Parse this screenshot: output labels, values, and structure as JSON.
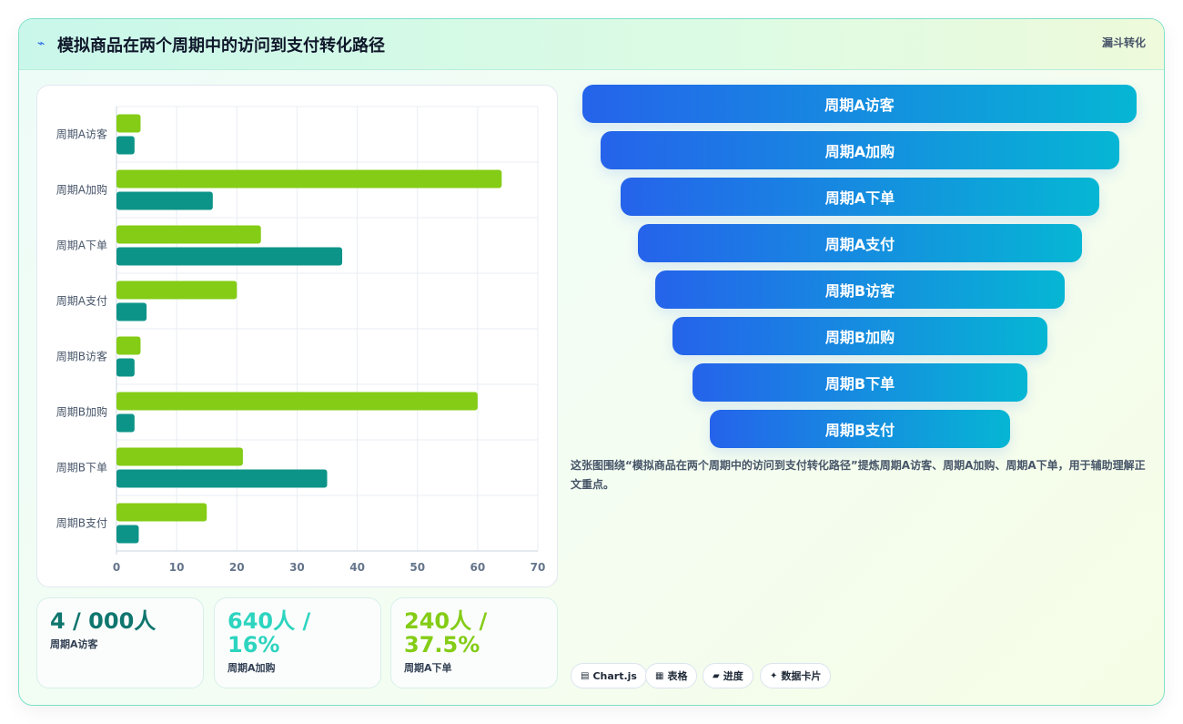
{
  "header": {
    "icon": "pulse-icon",
    "title": "模拟商品在两个周期中的访问到支付转化路径",
    "tag": "漏斗转化"
  },
  "chart_data": {
    "type": "bar",
    "orientation": "horizontal",
    "categories": [
      "周期A访客",
      "周期A加购",
      "周期A下单",
      "周期A支付",
      "周期B访客",
      "周期B加购",
      "周期B下单",
      "周期B支付"
    ],
    "series": [
      {
        "color": "#84cc16",
        "values": [
          4,
          64,
          24,
          20,
          4,
          60,
          21,
          15
        ]
      },
      {
        "color": "#0d9488",
        "values": [
          3,
          16,
          37.5,
          5,
          3,
          3,
          35,
          3.7
        ]
      }
    ],
    "xlim": [
      0,
      70
    ],
    "xticks": [
      0,
      10,
      20,
      30,
      40,
      50,
      60,
      70
    ],
    "grid": true
  },
  "stats": [
    {
      "value": "4 / 000人",
      "label": "周期A访客",
      "color": "#0f766e"
    },
    {
      "value": "640人 / 16%",
      "label": "周期A加购",
      "color": "#2dd4bf"
    },
    {
      "value": "240人 / 37.5%",
      "label": "周期A下单",
      "color": "#84cc16"
    }
  ],
  "funnel": [
    "周期A访客",
    "周期A加购",
    "周期A下单",
    "周期A支付",
    "周期B访客",
    "周期B加购",
    "周期B下单",
    "周期B支付"
  ],
  "description": "这张图围绕“模拟商品在两个周期中的访问到支付转化路径”提炼周期A访客、周期A加购、周期A下单，用于辅助理解正文重点。",
  "pills": [
    {
      "icon": "chart-icon",
      "label": "Chart.js"
    },
    {
      "icon": "table-icon",
      "label": "表格"
    },
    {
      "icon": "progress-icon",
      "label": "进度"
    },
    {
      "icon": "sparkle-icon",
      "label": "数据卡片"
    }
  ]
}
